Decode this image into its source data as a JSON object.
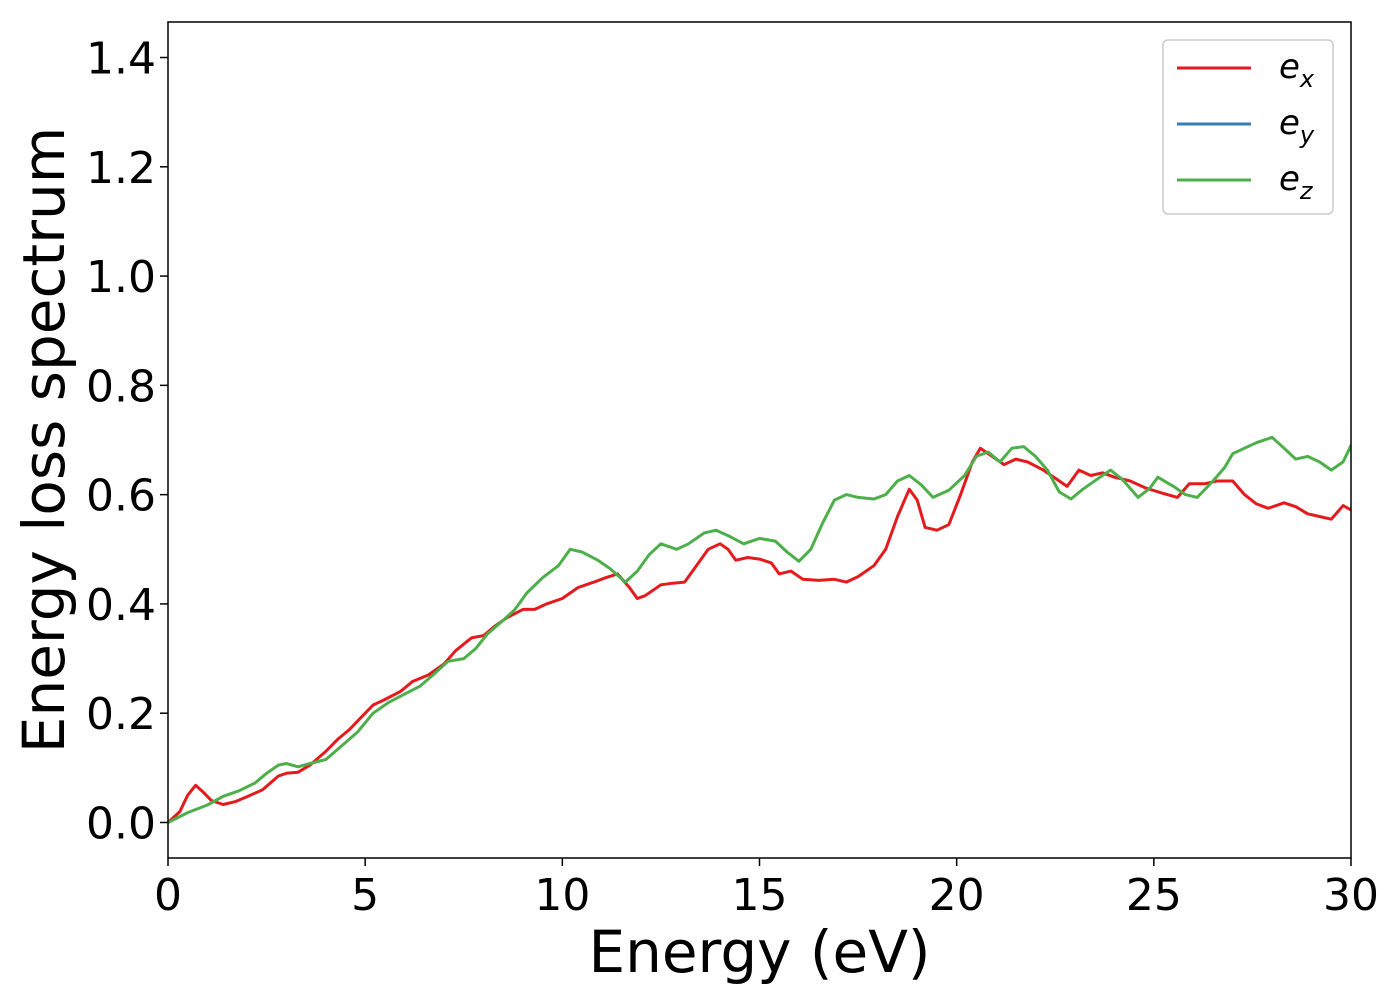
{
  "chart_data": {
    "type": "line",
    "title": "",
    "xlabel": "Energy (eV)",
    "ylabel": "Energy loss spectrum",
    "xlim": [
      0,
      30
    ],
    "ylim": [
      -0.065,
      1.465
    ],
    "xticks": [
      0,
      5,
      10,
      15,
      20,
      25,
      30
    ],
    "xtick_labels": [
      "0",
      "5",
      "10",
      "15",
      "20",
      "25",
      "30"
    ],
    "yticks": [
      0.0,
      0.2,
      0.4,
      0.6,
      0.8,
      1.0,
      1.2,
      1.4
    ],
    "ytick_labels": [
      "0.0",
      "0.2",
      "0.4",
      "0.6",
      "0.8",
      "1.0",
      "1.2",
      "1.4"
    ],
    "grid": false,
    "legend_position": "top-right",
    "series": [
      {
        "name": "e",
        "subscript": "x",
        "color": "#e41a1c",
        "points": [
          [
            0,
            0.0
          ],
          [
            0.3,
            0.02
          ],
          [
            0.5,
            0.05
          ],
          [
            0.7,
            0.068
          ],
          [
            0.9,
            0.055
          ],
          [
            1.1,
            0.04
          ],
          [
            1.4,
            0.033
          ],
          [
            1.7,
            0.038
          ],
          [
            2.0,
            0.047
          ],
          [
            2.4,
            0.06
          ],
          [
            2.8,
            0.085
          ],
          [
            3.0,
            0.09
          ],
          [
            3.3,
            0.092
          ],
          [
            3.6,
            0.105
          ],
          [
            4.0,
            0.13
          ],
          [
            4.3,
            0.152
          ],
          [
            4.6,
            0.17
          ],
          [
            5.0,
            0.2
          ],
          [
            5.2,
            0.215
          ],
          [
            5.5,
            0.225
          ],
          [
            5.9,
            0.24
          ],
          [
            6.2,
            0.258
          ],
          [
            6.6,
            0.27
          ],
          [
            7.0,
            0.29
          ],
          [
            7.3,
            0.315
          ],
          [
            7.7,
            0.338
          ],
          [
            8.0,
            0.342
          ],
          [
            8.3,
            0.36
          ],
          [
            8.6,
            0.375
          ],
          [
            9.0,
            0.39
          ],
          [
            9.3,
            0.39
          ],
          [
            9.6,
            0.4
          ],
          [
            10.0,
            0.41
          ],
          [
            10.4,
            0.43
          ],
          [
            10.8,
            0.44
          ],
          [
            11.1,
            0.448
          ],
          [
            11.4,
            0.455
          ],
          [
            11.7,
            0.43
          ],
          [
            11.9,
            0.41
          ],
          [
            12.1,
            0.415
          ],
          [
            12.5,
            0.435
          ],
          [
            12.8,
            0.438
          ],
          [
            13.1,
            0.44
          ],
          [
            13.4,
            0.47
          ],
          [
            13.7,
            0.5
          ],
          [
            14.0,
            0.51
          ],
          [
            14.2,
            0.5
          ],
          [
            14.4,
            0.48
          ],
          [
            14.7,
            0.485
          ],
          [
            15.0,
            0.482
          ],
          [
            15.3,
            0.475
          ],
          [
            15.5,
            0.455
          ],
          [
            15.8,
            0.46
          ],
          [
            16.1,
            0.445
          ],
          [
            16.5,
            0.443
          ],
          [
            16.9,
            0.445
          ],
          [
            17.2,
            0.44
          ],
          [
            17.5,
            0.45
          ],
          [
            17.9,
            0.47
          ],
          [
            18.2,
            0.5
          ],
          [
            18.5,
            0.56
          ],
          [
            18.8,
            0.61
          ],
          [
            19.0,
            0.59
          ],
          [
            19.2,
            0.54
          ],
          [
            19.5,
            0.535
          ],
          [
            19.8,
            0.545
          ],
          [
            20.1,
            0.6
          ],
          [
            20.4,
            0.66
          ],
          [
            20.6,
            0.685
          ],
          [
            20.9,
            0.67
          ],
          [
            21.2,
            0.655
          ],
          [
            21.5,
            0.665
          ],
          [
            21.8,
            0.66
          ],
          [
            22.2,
            0.645
          ],
          [
            22.5,
            0.63
          ],
          [
            22.8,
            0.615
          ],
          [
            23.1,
            0.645
          ],
          [
            23.4,
            0.635
          ],
          [
            23.7,
            0.64
          ],
          [
            24.0,
            0.632
          ],
          [
            24.4,
            0.625
          ],
          [
            24.8,
            0.612
          ],
          [
            25.2,
            0.603
          ],
          [
            25.6,
            0.595
          ],
          [
            25.9,
            0.62
          ],
          [
            26.3,
            0.62
          ],
          [
            26.6,
            0.625
          ],
          [
            27.0,
            0.625
          ],
          [
            27.3,
            0.6
          ],
          [
            27.6,
            0.583
          ],
          [
            27.9,
            0.575
          ],
          [
            28.3,
            0.585
          ],
          [
            28.6,
            0.578
          ],
          [
            28.9,
            0.565
          ],
          [
            29.2,
            0.56
          ],
          [
            29.5,
            0.555
          ],
          [
            29.8,
            0.58
          ],
          [
            30.0,
            0.572
          ]
        ]
      },
      {
        "name": "e",
        "subscript": "y",
        "color": "#377eb8",
        "points": []
      },
      {
        "name": "e",
        "subscript": "z",
        "color": "#4daf4a",
        "points": [
          [
            0,
            0.0
          ],
          [
            0.5,
            0.018
          ],
          [
            1.0,
            0.032
          ],
          [
            1.4,
            0.048
          ],
          [
            1.8,
            0.058
          ],
          [
            2.2,
            0.072
          ],
          [
            2.5,
            0.09
          ],
          [
            2.8,
            0.105
          ],
          [
            3.0,
            0.108
          ],
          [
            3.3,
            0.102
          ],
          [
            3.6,
            0.108
          ],
          [
            4.0,
            0.115
          ],
          [
            4.4,
            0.14
          ],
          [
            4.8,
            0.165
          ],
          [
            5.2,
            0.2
          ],
          [
            5.6,
            0.22
          ],
          [
            6.0,
            0.235
          ],
          [
            6.4,
            0.25
          ],
          [
            6.8,
            0.275
          ],
          [
            7.1,
            0.295
          ],
          [
            7.5,
            0.3
          ],
          [
            7.8,
            0.318
          ],
          [
            8.1,
            0.345
          ],
          [
            8.5,
            0.37
          ],
          [
            8.8,
            0.39
          ],
          [
            9.1,
            0.42
          ],
          [
            9.5,
            0.448
          ],
          [
            9.9,
            0.47
          ],
          [
            10.2,
            0.5
          ],
          [
            10.5,
            0.495
          ],
          [
            10.9,
            0.48
          ],
          [
            11.2,
            0.465
          ],
          [
            11.6,
            0.44
          ],
          [
            11.9,
            0.46
          ],
          [
            12.2,
            0.49
          ],
          [
            12.5,
            0.51
          ],
          [
            12.9,
            0.5
          ],
          [
            13.2,
            0.51
          ],
          [
            13.6,
            0.53
          ],
          [
            13.9,
            0.535
          ],
          [
            14.2,
            0.525
          ],
          [
            14.6,
            0.51
          ],
          [
            15.0,
            0.52
          ],
          [
            15.4,
            0.515
          ],
          [
            15.7,
            0.495
          ],
          [
            16.0,
            0.478
          ],
          [
            16.3,
            0.5
          ],
          [
            16.6,
            0.548
          ],
          [
            16.9,
            0.59
          ],
          [
            17.2,
            0.6
          ],
          [
            17.5,
            0.595
          ],
          [
            17.9,
            0.592
          ],
          [
            18.2,
            0.6
          ],
          [
            18.5,
            0.625
          ],
          [
            18.8,
            0.635
          ],
          [
            19.1,
            0.618
          ],
          [
            19.4,
            0.595
          ],
          [
            19.8,
            0.608
          ],
          [
            20.2,
            0.635
          ],
          [
            20.5,
            0.67
          ],
          [
            20.8,
            0.678
          ],
          [
            21.1,
            0.66
          ],
          [
            21.4,
            0.685
          ],
          [
            21.7,
            0.688
          ],
          [
            22.0,
            0.67
          ],
          [
            22.3,
            0.645
          ],
          [
            22.6,
            0.605
          ],
          [
            22.9,
            0.592
          ],
          [
            23.2,
            0.61
          ],
          [
            23.6,
            0.63
          ],
          [
            23.9,
            0.645
          ],
          [
            24.2,
            0.628
          ],
          [
            24.6,
            0.595
          ],
          [
            24.9,
            0.612
          ],
          [
            25.1,
            0.632
          ],
          [
            25.5,
            0.615
          ],
          [
            25.8,
            0.6
          ],
          [
            26.1,
            0.595
          ],
          [
            26.5,
            0.625
          ],
          [
            26.8,
            0.65
          ],
          [
            27.0,
            0.675
          ],
          [
            27.3,
            0.685
          ],
          [
            27.6,
            0.695
          ],
          [
            28.0,
            0.705
          ],
          [
            28.3,
            0.685
          ],
          [
            28.6,
            0.665
          ],
          [
            28.9,
            0.67
          ],
          [
            29.2,
            0.66
          ],
          [
            29.5,
            0.645
          ],
          [
            29.8,
            0.66
          ],
          [
            30.0,
            0.69
          ]
        ]
      }
    ]
  }
}
